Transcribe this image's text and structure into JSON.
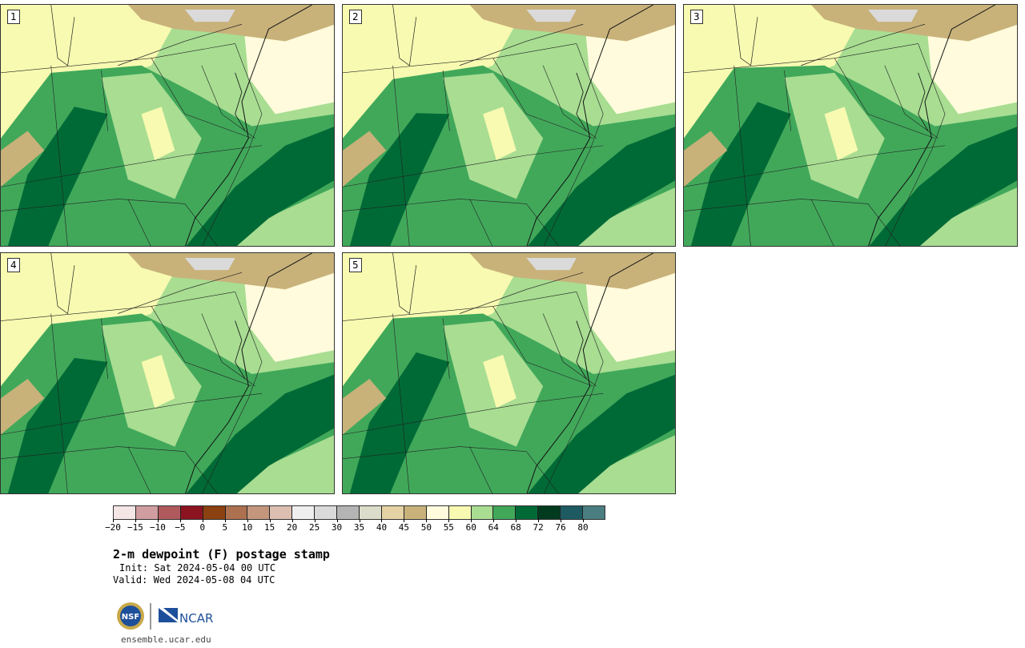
{
  "panels": [
    {
      "label": "1"
    },
    {
      "label": "2"
    },
    {
      "label": "3"
    },
    {
      "label": "4"
    },
    {
      "label": "5"
    }
  ],
  "legend": {
    "colors": [
      "#f3e6e4",
      "#d09ea0",
      "#b05a5e",
      "#8b1420",
      "#8b4110",
      "#ad7150",
      "#c4977d",
      "#dcbfb1",
      "#efefef",
      "#dadada",
      "#b4b4b4",
      "#dcdcca",
      "#e4d2a4",
      "#c8b27a",
      "#fffbdc",
      "#f7fab0",
      "#a8dd92",
      "#41a85a",
      "#006a36",
      "#013b1f",
      "#1d5a62",
      "#4a7e80"
    ],
    "ticks": [
      "−20",
      "−15",
      "−10",
      "−5",
      "0",
      "5",
      "10",
      "15",
      "20",
      "25",
      "30",
      "35",
      "40",
      "45",
      "50",
      "55",
      "60",
      "64",
      "68",
      "72",
      "76",
      "80"
    ]
  },
  "title": "2-m dewpoint (F) postage stamp",
  "init": "Init: Sat 2024-05-04 00 UTC",
  "valid": "Valid: Wed 2024-05-08 04 UTC",
  "logo": {
    "nsf": "NSF",
    "ncar": "NCAR"
  },
  "site": "ensemble.ucar.edu",
  "map_colors": {
    "land_dry": "#c8b27a",
    "light_yellow": "#fffbdc",
    "pale_yellow": "#f7fab0",
    "light_green": "#a8dd92",
    "green": "#41a85a",
    "dark_green": "#006a36",
    "grey": "#dadada"
  }
}
